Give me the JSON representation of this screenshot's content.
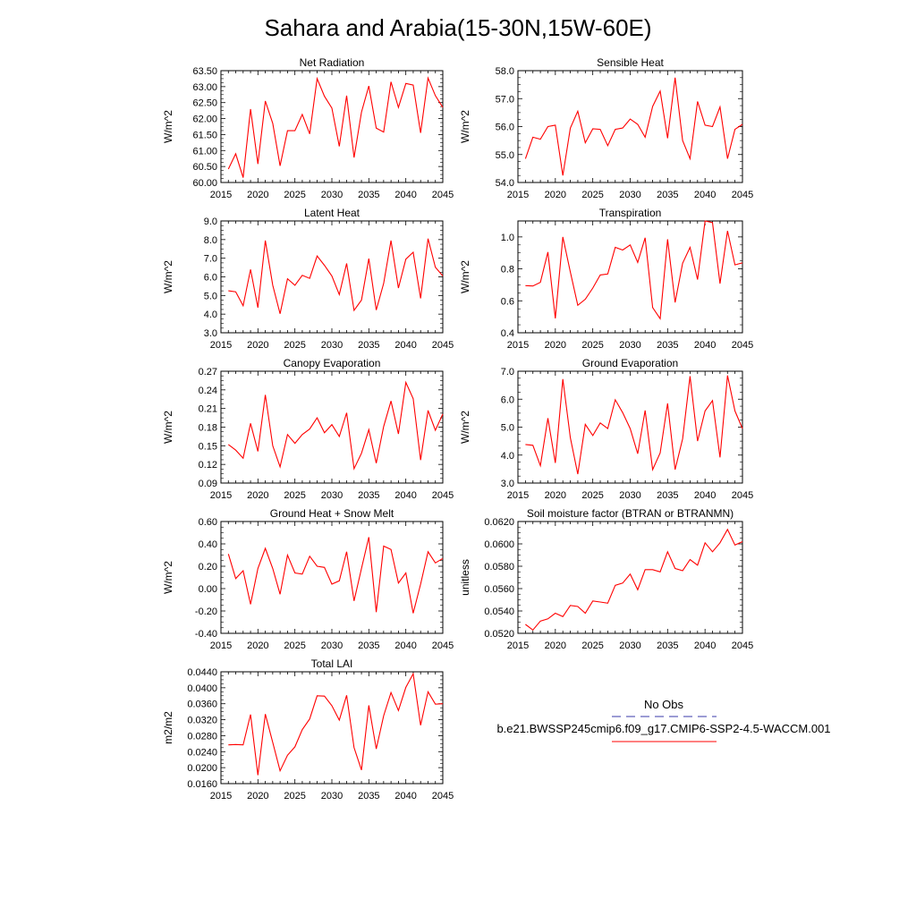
{
  "figure_title": "Sahara and Arabia(15-30N,15W-60E)",
  "legend": {
    "obs_label": "No Obs",
    "obs_color": "#3a3aa8",
    "model_label": "b.e21.BWSSP245cmip6.f09_g17.CMIP6-SSP2-4.5-WACCM.001",
    "model_color": "#ff0000"
  },
  "chart_data": [
    {
      "type": "line",
      "title": "Net Radiation",
      "ylabel": "W/m^2",
      "xlim": [
        2015,
        2045
      ],
      "ylim": [
        60.0,
        63.5
      ],
      "xticks": [
        2015,
        2020,
        2025,
        2030,
        2035,
        2040,
        2045
      ],
      "yticks": [
        "60.00",
        "60.50",
        "61.00",
        "61.50",
        "62.00",
        "62.50",
        "63.00",
        "63.50"
      ],
      "x": [
        2016,
        2017,
        2018,
        2019,
        2020,
        2021,
        2022,
        2023,
        2024,
        2025,
        2026,
        2027,
        2028,
        2029,
        2030,
        2031,
        2032,
        2033,
        2034,
        2035,
        2036,
        2037,
        2038,
        2039,
        2040,
        2041,
        2042,
        2043,
        2044,
        2045
      ],
      "series": [
        {
          "values": [
            60.42,
            60.9,
            60.15,
            62.3,
            60.58,
            62.55,
            61.85,
            60.52,
            61.62,
            61.62,
            62.13,
            61.52,
            63.25,
            62.7,
            62.33,
            61.13,
            62.72,
            60.78,
            62.2,
            63.02,
            61.7,
            61.58,
            63.15,
            62.35,
            63.1,
            63.05,
            61.55,
            63.27,
            62.72,
            62.35
          ]
        }
      ]
    },
    {
      "type": "line",
      "title": "Sensible Heat",
      "ylabel": "W/m^2",
      "xlim": [
        2015,
        2045
      ],
      "ylim": [
        54.0,
        58.0
      ],
      "xticks": [
        2015,
        2020,
        2025,
        2030,
        2035,
        2040,
        2045
      ],
      "yticks": [
        "54.0",
        "55.0",
        "56.0",
        "57.0",
        "58.0"
      ],
      "x": [
        2016,
        2017,
        2018,
        2019,
        2020,
        2021,
        2022,
        2023,
        2024,
        2025,
        2026,
        2027,
        2028,
        2029,
        2030,
        2031,
        2032,
        2033,
        2034,
        2035,
        2036,
        2037,
        2038,
        2039,
        2040,
        2041,
        2042,
        2043,
        2044,
        2045
      ],
      "series": [
        {
          "values": [
            54.85,
            55.62,
            55.55,
            56.0,
            56.05,
            54.25,
            55.95,
            56.55,
            55.42,
            55.92,
            55.9,
            55.32,
            55.9,
            55.95,
            56.27,
            56.08,
            55.62,
            56.72,
            57.27,
            55.58,
            57.75,
            55.5,
            54.85,
            56.9,
            56.05,
            56.0,
            56.7,
            54.85,
            55.9,
            56.08
          ]
        }
      ]
    },
    {
      "type": "line",
      "title": "Latent Heat",
      "ylabel": "W/m^2",
      "xlim": [
        2015,
        2045
      ],
      "ylim": [
        3.0,
        9.0
      ],
      "xticks": [
        2015,
        2020,
        2025,
        2030,
        2035,
        2040,
        2045
      ],
      "yticks": [
        "3.0",
        "4.0",
        "5.0",
        "6.0",
        "7.0",
        "8.0",
        "9.0"
      ],
      "x": [
        2016,
        2017,
        2018,
        2019,
        2020,
        2021,
        2022,
        2023,
        2024,
        2025,
        2026,
        2027,
        2028,
        2029,
        2030,
        2031,
        2032,
        2033,
        2034,
        2035,
        2036,
        2037,
        2038,
        2039,
        2040,
        2041,
        2042,
        2043,
        2044,
        2045
      ],
      "series": [
        {
          "values": [
            5.25,
            5.2,
            4.45,
            6.4,
            4.35,
            7.95,
            5.55,
            4.02,
            5.9,
            5.55,
            6.08,
            5.92,
            7.12,
            6.62,
            6.05,
            5.05,
            6.72,
            4.2,
            4.75,
            6.98,
            4.22,
            5.65,
            7.95,
            5.4,
            6.95,
            7.32,
            4.85,
            8.05,
            6.52,
            6.05
          ]
        }
      ]
    },
    {
      "type": "line",
      "title": "Transpiration",
      "ylabel": "W/m^2",
      "xlim": [
        2015,
        2045
      ],
      "ylim": [
        0.4,
        1.1
      ],
      "xticks": [
        2015,
        2020,
        2025,
        2030,
        2035,
        2040,
        2045
      ],
      "yticks": [
        "0.4",
        "0.6",
        "0.8",
        "1.0"
      ],
      "x": [
        2016,
        2017,
        2018,
        2019,
        2020,
        2021,
        2022,
        2023,
        2024,
        2025,
        2026,
        2027,
        2028,
        2029,
        2030,
        2031,
        2032,
        2033,
        2034,
        2035,
        2036,
        2037,
        2038,
        2039,
        2040,
        2041,
        2042,
        2043,
        2044,
        2045
      ],
      "series": [
        {
          "values": [
            0.695,
            0.693,
            0.716,
            0.905,
            0.49,
            1.0,
            0.78,
            0.572,
            0.61,
            0.68,
            0.762,
            0.768,
            0.935,
            0.918,
            0.95,
            0.84,
            0.995,
            0.558,
            0.488,
            0.985,
            0.59,
            0.835,
            0.935,
            0.733,
            1.1,
            1.09,
            0.708,
            1.038,
            0.825,
            0.838
          ]
        }
      ]
    },
    {
      "type": "line",
      "title": "Canopy Evaporation",
      "ylabel": "W/m^2",
      "xlim": [
        2015,
        2045
      ],
      "ylim": [
        0.09,
        0.27
      ],
      "xticks": [
        2015,
        2020,
        2025,
        2030,
        2035,
        2040,
        2045
      ],
      "yticks": [
        "0.09",
        "0.12",
        "0.15",
        "0.18",
        "0.21",
        "0.24",
        "0.27"
      ],
      "x": [
        2016,
        2017,
        2018,
        2019,
        2020,
        2021,
        2022,
        2023,
        2024,
        2025,
        2026,
        2027,
        2028,
        2029,
        2030,
        2031,
        2032,
        2033,
        2034,
        2035,
        2036,
        2037,
        2038,
        2039,
        2040,
        2041,
        2042,
        2043,
        2044,
        2045
      ],
      "series": [
        {
          "values": [
            0.152,
            0.143,
            0.13,
            0.186,
            0.141,
            0.232,
            0.15,
            0.116,
            0.168,
            0.154,
            0.168,
            0.177,
            0.195,
            0.171,
            0.184,
            0.165,
            0.203,
            0.113,
            0.138,
            0.176,
            0.122,
            0.181,
            0.222,
            0.169,
            0.252,
            0.226,
            0.127,
            0.207,
            0.175,
            0.201
          ]
        }
      ]
    },
    {
      "type": "line",
      "title": "Ground Evaporation",
      "ylabel": "W/m^2",
      "xlim": [
        2015,
        2045
      ],
      "ylim": [
        3.0,
        7.0
      ],
      "xticks": [
        2015,
        2020,
        2025,
        2030,
        2035,
        2040,
        2045
      ],
      "yticks": [
        "3.0",
        "4.0",
        "5.0",
        "6.0",
        "7.0"
      ],
      "x": [
        2016,
        2017,
        2018,
        2019,
        2020,
        2021,
        2022,
        2023,
        2024,
        2025,
        2026,
        2027,
        2028,
        2029,
        2030,
        2031,
        2032,
        2033,
        2034,
        2035,
        2036,
        2037,
        2038,
        2039,
        2040,
        2041,
        2042,
        2043,
        2044,
        2045
      ],
      "series": [
        {
          "values": [
            4.38,
            4.35,
            3.62,
            5.32,
            3.72,
            6.72,
            4.62,
            3.32,
            5.1,
            4.7,
            5.15,
            4.95,
            5.98,
            5.52,
            4.95,
            4.05,
            5.6,
            3.48,
            4.08,
            5.85,
            3.48,
            4.58,
            6.82,
            4.5,
            5.58,
            5.95,
            3.92,
            6.85,
            5.58,
            4.95
          ]
        }
      ]
    },
    {
      "type": "line",
      "title": "Ground Heat + Snow Melt",
      "ylabel": "W/m^2",
      "xlim": [
        2015,
        2045
      ],
      "ylim": [
        -0.4,
        0.6
      ],
      "xticks": [
        2015,
        2020,
        2025,
        2030,
        2035,
        2040,
        2045
      ],
      "yticks": [
        "-0.40",
        "-0.20",
        "0.00",
        "0.20",
        "0.40",
        "0.60"
      ],
      "x": [
        2016,
        2017,
        2018,
        2019,
        2020,
        2021,
        2022,
        2023,
        2024,
        2025,
        2026,
        2027,
        2028,
        2029,
        2030,
        2031,
        2032,
        2033,
        2034,
        2035,
        2036,
        2037,
        2038,
        2039,
        2040,
        2041,
        2042,
        2043,
        2044,
        2045
      ],
      "series": [
        {
          "values": [
            0.31,
            0.09,
            0.16,
            -0.14,
            0.18,
            0.36,
            0.18,
            -0.05,
            0.3,
            0.14,
            0.13,
            0.29,
            0.2,
            0.19,
            0.04,
            0.07,
            0.33,
            -0.11,
            0.18,
            0.46,
            -0.21,
            0.38,
            0.35,
            0.05,
            0.14,
            -0.22,
            0.04,
            0.33,
            0.23,
            0.27
          ]
        }
      ]
    },
    {
      "type": "line",
      "title": "Soil moisture factor (BTRAN or BTRANMN)",
      "ylabel": "unitless",
      "xlim": [
        2015,
        2045
      ],
      "ylim": [
        0.052,
        0.062
      ],
      "xticks": [
        2015,
        2020,
        2025,
        2030,
        2035,
        2040,
        2045
      ],
      "yticks": [
        "0.0520",
        "0.0540",
        "0.0560",
        "0.0580",
        "0.0600",
        "0.0620"
      ],
      "x": [
        2016,
        2017,
        2018,
        2019,
        2020,
        2021,
        2022,
        2023,
        2024,
        2025,
        2026,
        2027,
        2028,
        2029,
        2030,
        2031,
        2032,
        2033,
        2034,
        2035,
        2036,
        2037,
        2038,
        2039,
        2040,
        2041,
        2042,
        2043,
        2044,
        2045
      ],
      "series": [
        {
          "values": [
            0.0528,
            0.0523,
            0.0531,
            0.0533,
            0.0538,
            0.0535,
            0.0545,
            0.0544,
            0.0538,
            0.0549,
            0.0548,
            0.0547,
            0.0563,
            0.0565,
            0.0573,
            0.0559,
            0.0577,
            0.0577,
            0.0575,
            0.0593,
            0.0578,
            0.0576,
            0.0586,
            0.0581,
            0.0601,
            0.0593,
            0.0601,
            0.0613,
            0.0599,
            0.0602
          ]
        }
      ]
    },
    {
      "type": "line",
      "title": "Total LAI",
      "ylabel": "m2/m2",
      "xlim": [
        2015,
        2045
      ],
      "ylim": [
        0.016,
        0.044
      ],
      "xticks": [
        2015,
        2020,
        2025,
        2030,
        2035,
        2040,
        2045
      ],
      "yticks": [
        "0.0160",
        "0.0200",
        "0.0240",
        "0.0280",
        "0.0320",
        "0.0360",
        "0.0400",
        "0.0440"
      ],
      "x": [
        2016,
        2017,
        2018,
        2019,
        2020,
        2021,
        2022,
        2023,
        2024,
        2025,
        2026,
        2027,
        2028,
        2029,
        2030,
        2031,
        2032,
        2033,
        2034,
        2035,
        2036,
        2037,
        2038,
        2039,
        2040,
        2041,
        2042,
        2043,
        2044,
        2045
      ],
      "series": [
        {
          "values": [
            0.0257,
            0.0258,
            0.0257,
            0.0333,
            0.0181,
            0.0334,
            0.0263,
            0.0192,
            0.0231,
            0.0252,
            0.0295,
            0.0322,
            0.038,
            0.0379,
            0.0355,
            0.0319,
            0.0381,
            0.025,
            0.0194,
            0.0356,
            0.0247,
            0.033,
            0.0388,
            0.0343,
            0.0401,
            0.0435,
            0.0306,
            0.039,
            0.0359,
            0.036
          ]
        }
      ]
    }
  ]
}
